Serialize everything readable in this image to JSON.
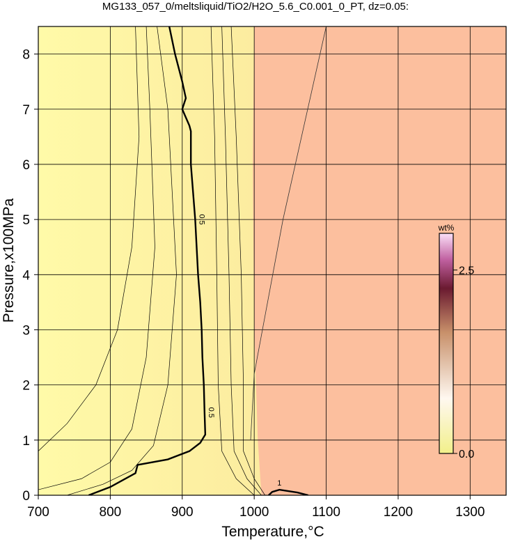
{
  "chart_data": {
    "type": "contour",
    "title": "MG133_057_0/meltsliquid/TiO2/H2O_5.6_C0.001_0_PT, dz=0.05:",
    "x_label": "Temperature,°C",
    "y_label": "Pressure,x100MPa",
    "xlim": [
      700,
      1350
    ],
    "ylim": [
      0,
      8.5
    ],
    "xticks": [
      700,
      800,
      900,
      1000,
      1100,
      1200,
      1300
    ],
    "yticks": [
      0,
      1,
      2,
      3,
      4,
      5,
      6,
      7,
      8
    ],
    "grid": true,
    "melt_region": {
      "x": [
        1000,
        998,
        1000,
        1005,
        1010
      ],
      "y": [
        8.5,
        6,
        3,
        1,
        0
      ]
    },
    "field_boundary": {
      "x": [
        1100,
        1040,
        1000,
        995
      ],
      "y": [
        8.5,
        5,
        2.2,
        1
      ]
    },
    "contours": [
      {
        "level": 0.5,
        "bold": true,
        "x": [
          882,
          890,
          900,
          905,
          900,
          910,
          912,
          912,
          915,
          918,
          920,
          922,
          925,
          927,
          928,
          930,
          931,
          932,
          925,
          910,
          880,
          838,
          835,
          800,
          770
        ],
        "y": [
          8.5,
          8.0,
          7.5,
          7.2,
          7.0,
          6.7,
          6.6,
          6.0,
          5.5,
          5.0,
          4.5,
          4.0,
          3.5,
          3.0,
          2.5,
          2.0,
          1.5,
          1.1,
          0.95,
          0.8,
          0.65,
          0.55,
          0.4,
          0.15,
          0
        ]
      },
      {
        "level": 1,
        "bold": true,
        "x": [
          1020,
          1025,
          1035,
          1060,
          1075
        ],
        "y": [
          0,
          0.06,
          0.1,
          0.05,
          0
        ]
      },
      {
        "level": 0.2,
        "bold": false,
        "x": [
          700,
          740,
          780,
          810,
          830,
          840,
          835
        ],
        "y": [
          0.8,
          1.3,
          2.0,
          3.0,
          4.5,
          6.5,
          8.5
        ]
      },
      {
        "level": 0.3,
        "bold": false,
        "x": [
          700,
          760,
          800,
          830,
          850,
          862,
          855,
          850
        ],
        "y": [
          0.1,
          0.3,
          0.6,
          1.2,
          2.5,
          4.5,
          7.0,
          8.5
        ]
      },
      {
        "level": 0.4,
        "bold": false,
        "x": [
          740,
          790,
          830,
          860,
          880,
          892,
          880,
          865
        ],
        "y": [
          0,
          0.2,
          0.45,
          0.9,
          2.0,
          4.0,
          7.0,
          8.5
        ]
      },
      {
        "level": 0.6,
        "bold": false,
        "x": [
          1000,
          975,
          955,
          950,
          948,
          945,
          940
        ],
        "y": [
          0,
          0.3,
          0.8,
          2.0,
          4,
          6.5,
          8.5
        ]
      },
      {
        "level": 0.7,
        "bold": false,
        "x": [
          1010,
          990,
          972,
          968,
          965,
          960,
          955
        ],
        "y": [
          0,
          0.3,
          0.8,
          2.0,
          4,
          6.5,
          8.5
        ]
      },
      {
        "level": 0.8,
        "bold": false,
        "x": [
          1015,
          1000,
          985,
          985,
          982,
          975,
          968
        ],
        "y": [
          0,
          0.3,
          0.8,
          2.0,
          4,
          6.5,
          8.5
        ]
      }
    ],
    "colorbar": {
      "label": "wt%",
      "lim": [
        0,
        3
      ],
      "ticks": [
        {
          "value": 0,
          "label": "0.0"
        },
        2.5
      ]
    }
  }
}
